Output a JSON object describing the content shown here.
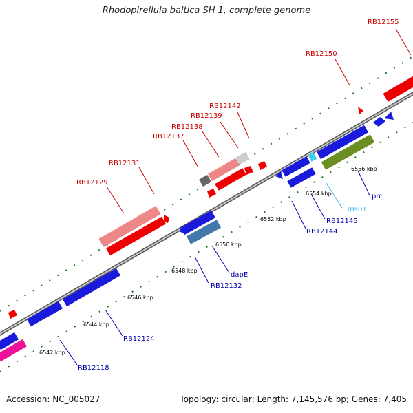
{
  "title": "Rhodopirellula baltica SH 1, complete genome",
  "footer": {
    "accession": "Accession: NC_005027",
    "topology": "Topology: circular; Length: 7,145,576 bp; Genes: 7,405"
  },
  "colors": {
    "forward_label": "#cc0000",
    "reverse_label": "#0000aa",
    "rna_label": "#33bbee"
  },
  "ticks": [
    "6542 kbp",
    "6544 kbp",
    "6546 kbp",
    "6548 kbp",
    "6550 kbp",
    "6552 kbp",
    "6554 kbp",
    "6556 kbp"
  ],
  "genes": [
    {
      "name": "RB12155",
      "color": "#cc0000"
    },
    {
      "name": "RB12150",
      "color": "#cc0000"
    },
    {
      "name": "RB12142",
      "color": "#cc0000"
    },
    {
      "name": "RB12139",
      "color": "#cc0000"
    },
    {
      "name": "RB12138",
      "color": "#cc0000"
    },
    {
      "name": "RB12137",
      "color": "#cc0000"
    },
    {
      "name": "RB12131",
      "color": "#cc0000"
    },
    {
      "name": "RB12129",
      "color": "#cc0000"
    },
    {
      "name": "RBs01",
      "color": "#33bbee"
    },
    {
      "name": "prc",
      "color": "#0000aa"
    },
    {
      "name": "RB12145",
      "color": "#0000aa"
    },
    {
      "name": "RB12144",
      "color": "#0000aa"
    },
    {
      "name": "dapE",
      "color": "#0000aa"
    },
    {
      "name": "RB12132",
      "color": "#0000aa"
    },
    {
      "name": "RB12124",
      "color": "#0000aa"
    },
    {
      "name": "RB12118",
      "color": "#0000aa"
    }
  ]
}
